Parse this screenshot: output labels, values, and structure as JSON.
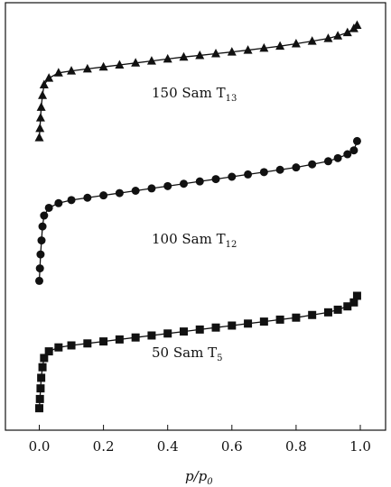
{
  "chart_data": {
    "type": "line",
    "title": "",
    "xlabel": "p/p",
    "xlabel_sub": "0",
    "ylabel": "",
    "xlim": [
      -0.1,
      1.1
    ],
    "xticks": [
      "0.0",
      "0.2",
      "0.4",
      "0.6",
      "0.8",
      "1.0"
    ],
    "series": [
      {
        "name": "150 Sam T",
        "name_sub": "13",
        "marker": "triangle",
        "points": [
          [
            0.0,
            0.05
          ],
          [
            0.002,
            0.12
          ],
          [
            0.004,
            0.2
          ],
          [
            0.006,
            0.28
          ],
          [
            0.01,
            0.37
          ],
          [
            0.015,
            0.45
          ],
          [
            0.03,
            0.5
          ],
          [
            0.06,
            0.54
          ],
          [
            0.1,
            0.555
          ],
          [
            0.15,
            0.57
          ],
          [
            0.2,
            0.585
          ],
          [
            0.25,
            0.6
          ],
          [
            0.3,
            0.615
          ],
          [
            0.35,
            0.63
          ],
          [
            0.4,
            0.645
          ],
          [
            0.45,
            0.66
          ],
          [
            0.5,
            0.672
          ],
          [
            0.55,
            0.685
          ],
          [
            0.6,
            0.698
          ],
          [
            0.65,
            0.712
          ],
          [
            0.7,
            0.727
          ],
          [
            0.75,
            0.742
          ],
          [
            0.8,
            0.76
          ],
          [
            0.85,
            0.78
          ],
          [
            0.9,
            0.8
          ],
          [
            0.93,
            0.82
          ],
          [
            0.96,
            0.845
          ],
          [
            0.98,
            0.875
          ],
          [
            0.99,
            0.9
          ]
        ]
      },
      {
        "name": "100 Sam T",
        "name_sub": "12",
        "marker": "circle",
        "points": [
          [
            0.0,
            0.05
          ],
          [
            0.002,
            0.13
          ],
          [
            0.004,
            0.22
          ],
          [
            0.007,
            0.31
          ],
          [
            0.01,
            0.4
          ],
          [
            0.015,
            0.47
          ],
          [
            0.03,
            0.52
          ],
          [
            0.06,
            0.55
          ],
          [
            0.1,
            0.57
          ],
          [
            0.15,
            0.585
          ],
          [
            0.2,
            0.6
          ],
          [
            0.25,
            0.615
          ],
          [
            0.3,
            0.63
          ],
          [
            0.35,
            0.645
          ],
          [
            0.4,
            0.66
          ],
          [
            0.45,
            0.675
          ],
          [
            0.5,
            0.69
          ],
          [
            0.55,
            0.705
          ],
          [
            0.6,
            0.72
          ],
          [
            0.65,
            0.735
          ],
          [
            0.7,
            0.75
          ],
          [
            0.75,
            0.765
          ],
          [
            0.8,
            0.78
          ],
          [
            0.85,
            0.8
          ],
          [
            0.9,
            0.82
          ],
          [
            0.93,
            0.84
          ],
          [
            0.96,
            0.865
          ],
          [
            0.98,
            0.89
          ],
          [
            0.99,
            0.95
          ]
        ]
      },
      {
        "name": "50 Sam T",
        "name_sub": "5",
        "marker": "square",
        "points": [
          [
            0.0,
            0.05
          ],
          [
            0.002,
            0.12
          ],
          [
            0.004,
            0.2
          ],
          [
            0.006,
            0.28
          ],
          [
            0.01,
            0.36
          ],
          [
            0.015,
            0.43
          ],
          [
            0.03,
            0.48
          ],
          [
            0.06,
            0.51
          ],
          [
            0.1,
            0.525
          ],
          [
            0.15,
            0.54
          ],
          [
            0.2,
            0.555
          ],
          [
            0.25,
            0.57
          ],
          [
            0.3,
            0.585
          ],
          [
            0.35,
            0.6
          ],
          [
            0.4,
            0.615
          ],
          [
            0.45,
            0.63
          ],
          [
            0.5,
            0.645
          ],
          [
            0.55,
            0.66
          ],
          [
            0.6,
            0.675
          ],
          [
            0.65,
            0.69
          ],
          [
            0.7,
            0.705
          ],
          [
            0.75,
            0.72
          ],
          [
            0.8,
            0.735
          ],
          [
            0.85,
            0.755
          ],
          [
            0.9,
            0.775
          ],
          [
            0.93,
            0.795
          ],
          [
            0.96,
            0.82
          ],
          [
            0.98,
            0.85
          ],
          [
            0.99,
            0.9
          ]
        ]
      }
    ],
    "grid": false,
    "legend": "none"
  }
}
